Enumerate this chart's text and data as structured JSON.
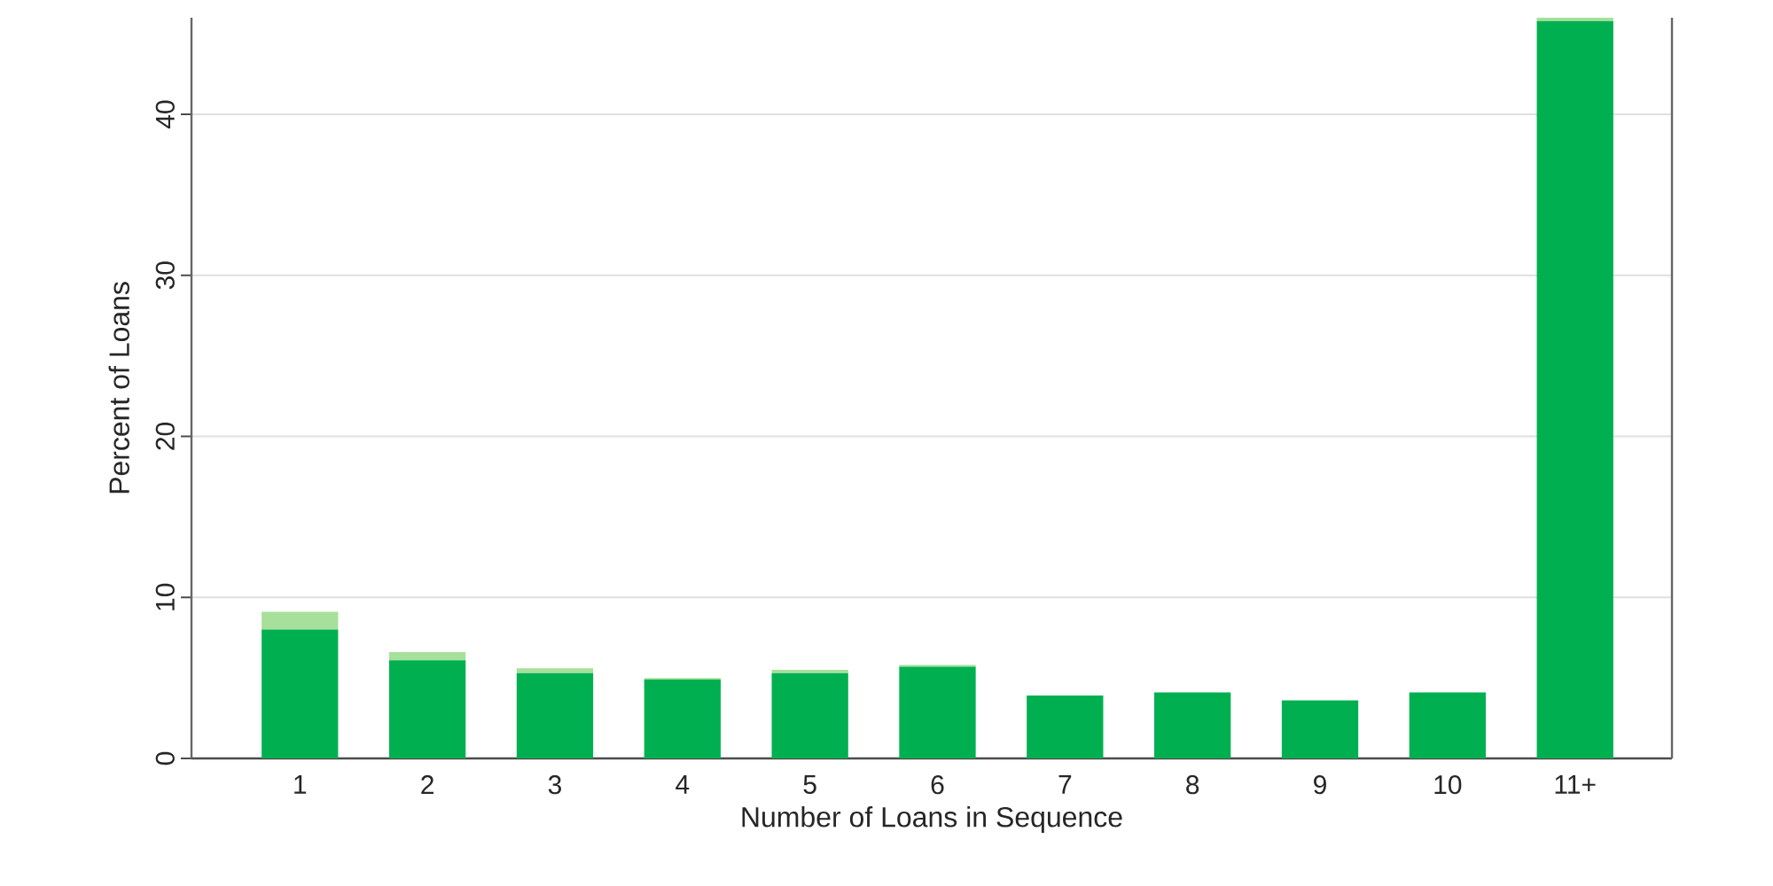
{
  "chart_data": {
    "type": "bar",
    "xlabel": "Number of Loans in Sequence",
    "ylabel": "Percent of Loans",
    "categories": [
      "1",
      "2",
      "3",
      "4",
      "5",
      "6",
      "7",
      "8",
      "9",
      "10",
      "11+"
    ],
    "stacked": true,
    "series": [
      {
        "color": "#00b050",
        "values": [
          8.0,
          6.1,
          5.3,
          4.9,
          5.3,
          5.7,
          3.9,
          4.1,
          3.6,
          4.1,
          45.8
        ]
      },
      {
        "color": "#a6e09a",
        "values": [
          1.1,
          0.5,
          0.3,
          0.1,
          0.2,
          0.1,
          0,
          0,
          0,
          0,
          0.2
        ]
      }
    ],
    "ylim": [
      0,
      46
    ],
    "yticks": [
      0,
      10,
      20,
      30,
      40
    ],
    "grid": "y"
  }
}
